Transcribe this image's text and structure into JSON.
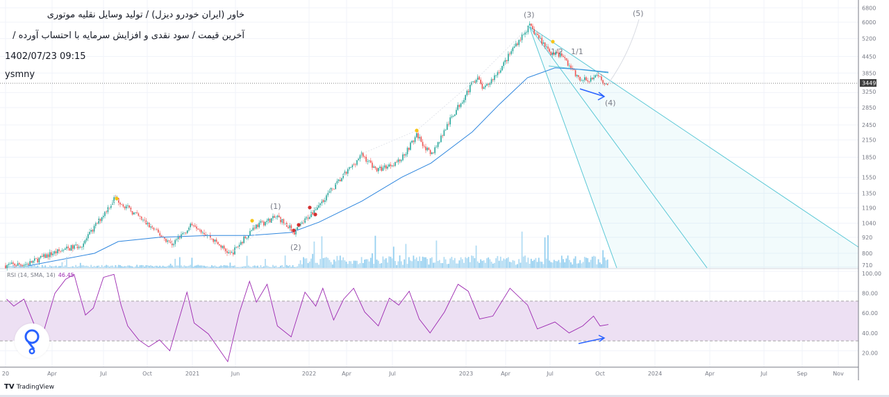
{
  "header": {
    "line1": "خاور (ایران خودرو دیزل) / تولید وسایل نقلیه موتوری",
    "line2": "آخرین قیمت / سود نقدی و افزایش سرمایه با احتساب آورده /",
    "timestamp": "1402/07/23 09:15",
    "author": "ysmny"
  },
  "footer": {
    "brand": "TradingView",
    "brand_mark": "17"
  },
  "rsi_label": {
    "name": "RSI (14, SMA, 14)",
    "value": "46.45"
  },
  "colors": {
    "up": "#26a69a",
    "down": "#ef5350",
    "ema": "#2e86de",
    "fan": "#5bc8d6",
    "rsi": "#9c27b0",
    "rsi_band": "#ede0f3",
    "arrow": "#2962ff",
    "volume": "#7cc4ec"
  },
  "chart_data": {
    "type": "line",
    "title": "خاور (ایران خودرو دیزل)",
    "y_axis": {
      "scale": "log",
      "ticks": [
        6800,
        6000,
        5200,
        4450,
        3850,
        3250,
        2850,
        2450,
        2150,
        1850,
        1550,
        1350,
        1190,
        1040,
        920,
        800,
        710
      ],
      "last_price": "3449"
    },
    "x_axis": {
      "ticks": [
        {
          "label": "20",
          "date": "2020-01-01"
        },
        {
          "label": "Apr",
          "date": "2020-04-01"
        },
        {
          "label": "Jul",
          "date": "2020-07-01"
        },
        {
          "label": "Oct",
          "date": "2020-10-01"
        },
        {
          "label": "2021",
          "date": "2021-01-01"
        },
        {
          "label": "Jun",
          "date": "2021-06-01"
        },
        {
          "label": "2022",
          "date": "2022-01-01"
        },
        {
          "label": "Apr",
          "date": "2022-04-01"
        },
        {
          "label": "Jul",
          "date": "2022-07-01"
        },
        {
          "label": "2023",
          "date": "2023-01-01"
        },
        {
          "label": "Apr",
          "date": "2023-04-01"
        },
        {
          "label": "Jul",
          "date": "2023-07-01"
        },
        {
          "label": "Oct",
          "date": "2023-10-01"
        },
        {
          "label": "2024",
          "date": "2024-01-01"
        },
        {
          "label": "Apr",
          "date": "2024-04-01"
        },
        {
          "label": "Jul",
          "date": "2024-07-01"
        },
        {
          "label": "Sep",
          "date": "2024-09-01"
        },
        {
          "label": "Nov",
          "date": "2024-11-01"
        }
      ]
    },
    "price": [
      [
        "2020-01-01",
        720
      ],
      [
        "2020-02-13",
        730
      ],
      [
        "2020-04-01",
        800
      ],
      [
        "2020-05-25",
        865
      ],
      [
        "2020-07-25",
        1300
      ],
      [
        "2020-11-20",
        865
      ],
      [
        "2021-01-05",
        1040
      ],
      [
        "2021-05-15",
        790
      ],
      [
        "2021-07-25",
        1010
      ],
      [
        "2021-10-01",
        1100
      ],
      [
        "2021-11-20",
        960
      ],
      [
        "2022-02-15",
        1340
      ],
      [
        "2022-05-01",
        1890
      ],
      [
        "2022-06-01",
        1650
      ],
      [
        "2022-07-20",
        1800
      ],
      [
        "2022-09-01",
        2250
      ],
      [
        "2022-10-05",
        1870
      ],
      [
        "2022-11-25",
        2600
      ],
      [
        "2023-01-25",
        3740
      ],
      [
        "2023-02-10",
        3320
      ],
      [
        "2023-03-25",
        4100
      ],
      [
        "2023-04-20",
        4900
      ],
      [
        "2023-05-20",
        5800
      ],
      [
        "2023-07-01",
        4630
      ],
      [
        "2023-07-25",
        4450
      ],
      [
        "2023-08-25",
        3600
      ],
      [
        "2023-09-28",
        3720
      ],
      [
        "2023-10-15",
        3449
      ]
    ],
    "ema": [
      [
        "2020-02-13",
        717
      ],
      [
        "2020-06-15",
        800
      ],
      [
        "2020-08-01",
        887
      ],
      [
        "2020-10-26",
        920
      ],
      [
        "2021-02-26",
        935
      ],
      [
        "2021-07-12",
        935
      ],
      [
        "2021-11-10",
        960
      ],
      [
        "2022-01-25",
        1050
      ],
      [
        "2022-05-01",
        1260
      ],
      [
        "2022-07-25",
        1555
      ],
      [
        "2022-10-05",
        1755
      ],
      [
        "2023-01-15",
        2305
      ],
      [
        "2023-03-18",
        2935
      ],
      [
        "2023-05-16",
        3700
      ],
      [
        "2023-07-10",
        4030
      ],
      [
        "2023-08-30",
        3970
      ],
      [
        "2023-10-15",
        3880
      ]
    ],
    "rsi": {
      "ticks": [
        "100.00",
        "80.00",
        "60.00",
        "40.00",
        "20.00"
      ],
      "band": [
        30,
        70
      ],
      "values": [
        [
          "2020-01-03",
          72
        ],
        [
          "2020-01-17",
          65
        ],
        [
          "2020-02-06",
          72
        ],
        [
          "2020-03-10",
          30
        ],
        [
          "2020-04-06",
          78
        ],
        [
          "2020-04-25",
          92
        ],
        [
          "2020-05-10",
          97
        ],
        [
          "2020-05-18",
          80
        ],
        [
          "2020-05-30",
          56
        ],
        [
          "2020-06-13",
          63
        ],
        [
          "2020-07-01",
          94
        ],
        [
          "2020-07-23",
          97
        ],
        [
          "2020-08-07",
          66
        ],
        [
          "2020-08-21",
          45
        ],
        [
          "2020-09-13",
          31
        ],
        [
          "2020-10-04",
          24
        ],
        [
          "2020-10-26",
          31
        ],
        [
          "2020-11-16",
          20
        ],
        [
          "2020-11-30",
          44
        ],
        [
          "2020-12-21",
          79
        ],
        [
          "2021-01-07",
          48
        ],
        [
          "2021-02-26",
          37
        ],
        [
          "2021-04-01",
          23
        ],
        [
          "2021-05-05",
          9
        ],
        [
          "2021-06-12",
          58
        ],
        [
          "2021-07-12",
          90
        ],
        [
          "2021-08-01",
          69
        ],
        [
          "2021-09-01",
          87
        ],
        [
          "2021-10-01",
          45
        ],
        [
          "2021-11-10",
          34
        ],
        [
          "2021-12-20",
          79
        ],
        [
          "2022-01-17",
          65
        ],
        [
          "2022-02-03",
          83
        ],
        [
          "2022-03-01",
          51
        ],
        [
          "2022-03-25",
          72
        ],
        [
          "2022-04-15",
          83
        ],
        [
          "2022-05-07",
          59
        ],
        [
          "2022-06-03",
          45
        ],
        [
          "2022-06-25",
          73
        ],
        [
          "2022-07-17",
          66
        ],
        [
          "2022-08-12",
          80
        ],
        [
          "2022-09-06",
          52
        ],
        [
          "2022-10-03",
          38
        ],
        [
          "2022-11-08",
          59
        ],
        [
          "2022-12-12",
          87
        ],
        [
          "2023-01-06",
          80
        ],
        [
          "2023-02-01",
          52
        ],
        [
          "2023-03-03",
          55
        ],
        [
          "2023-04-10",
          83
        ],
        [
          "2023-05-16",
          66
        ],
        [
          "2023-06-05",
          42
        ],
        [
          "2023-07-10",
          49
        ],
        [
          "2023-08-05",
          38
        ],
        [
          "2023-08-30",
          45
        ],
        [
          "2023-09-19",
          55
        ],
        [
          "2023-10-01",
          45
        ],
        [
          "2023-10-15",
          46.45
        ]
      ]
    },
    "annotations": {
      "wave1": "(1)",
      "wave2": "(2)",
      "wave3": "(3)",
      "wave4": "(4)",
      "wave5": "(5)",
      "fan_half": "1/2",
      "fan_full": "1/1"
    }
  }
}
